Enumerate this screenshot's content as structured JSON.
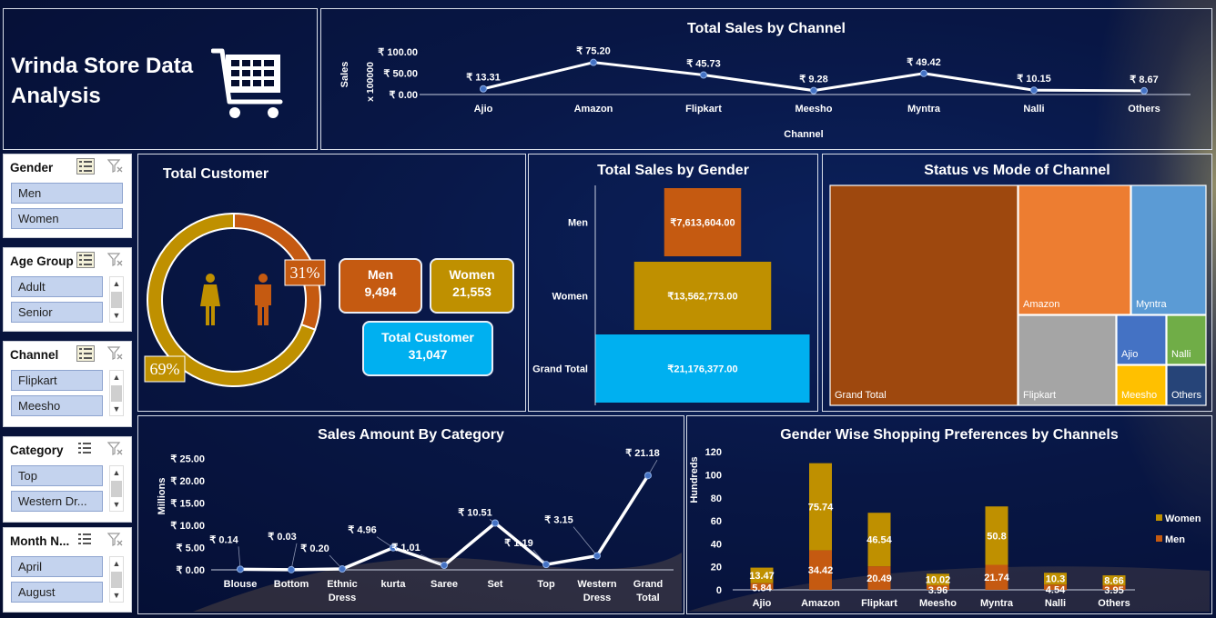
{
  "dashboard": {
    "title": "Vrinda Store Data Analysis",
    "icon": "shopping-cart-icon"
  },
  "colors": {
    "men": "#c55a11",
    "women": "#bf9000",
    "total": "#00b0f0",
    "panel_border": "#d8dde8",
    "background": "#0a1a4a"
  },
  "slicers": [
    {
      "title": "Gender",
      "items": [
        "Men",
        "Women"
      ],
      "multi_select_active": true,
      "scrollable": false
    },
    {
      "title": "Age Group",
      "items": [
        "Adult",
        "Senior"
      ],
      "multi_select_active": true,
      "scrollable": true
    },
    {
      "title": "Channel",
      "items": [
        "Flipkart",
        "Meesho"
      ],
      "multi_select_active": true,
      "scrollable": true
    },
    {
      "title": "Category",
      "items": [
        "Top",
        "Western Dr..."
      ],
      "multi_select_active": false,
      "scrollable": true
    },
    {
      "title": "Month N...",
      "items": [
        "April",
        "August"
      ],
      "multi_select_active": false,
      "scrollable": true
    }
  ],
  "total_customer": {
    "title": "Total Customer",
    "men_pct_label": "31%",
    "women_pct_label": "69%",
    "men_share": 0.306,
    "men_label": "Men",
    "men_value": "9,494",
    "women_label": "Women",
    "women_value": "21,553",
    "total_label": "Total Customer",
    "total_value": "31,047",
    "icons": [
      "female-icon",
      "male-icon"
    ]
  },
  "sales_by_channel": {
    "title": "Total Sales by Channel",
    "chart_data": {
      "type": "line",
      "title": "Total Sales by Channel",
      "xlabel": "Channel",
      "ylabel": "Sales",
      "yunit_label": "x 100000",
      "categories": [
        "Ajio",
        "Amazon",
        "Flipkart",
        "Meesho",
        "Myntra",
        "Nalli",
        "Others"
      ],
      "values": [
        13.31,
        75.2,
        45.73,
        9.28,
        49.42,
        10.15,
        8.67
      ],
      "data_labels": [
        "₹ 13.31",
        "₹ 75.20",
        "₹ 45.73",
        "₹ 9.28",
        "₹ 49.42",
        "₹ 10.15",
        "₹ 8.67"
      ],
      "yticks": [
        "₹ 0.00",
        "₹ 50.00",
        "₹ 100.00"
      ],
      "ylim": [
        0,
        100
      ]
    }
  },
  "sales_by_gender": {
    "title": "Total Sales by Gender",
    "chart_data": {
      "type": "bar",
      "title": "Total Sales by Gender",
      "categories": [
        "Men",
        "Women",
        "Grand Total"
      ],
      "values": [
        7613604,
        13562773,
        21176377
      ],
      "data_labels": [
        "₹7,613,604.00",
        "₹13,562,773.00",
        "₹21,176,377.00"
      ]
    }
  },
  "status_vs_mode": {
    "title": "Status vs Mode of Channel",
    "chart_data": {
      "type": "treemap",
      "title": "Status vs Mode of Channel",
      "labels": [
        "Grand Total",
        "Amazon",
        "Myntra",
        "Flipkart",
        "Ajio",
        "Nalli",
        "Meesho",
        "Others"
      ],
      "colors": [
        "#9e480e",
        "#ed7d31",
        "#5b9bd5",
        "#a5a5a5",
        "#4472c4",
        "#70ad47",
        "#ffc000",
        "#264478"
      ]
    }
  },
  "sales_by_category": {
    "title": "Sales Amount By Category",
    "chart_data": {
      "type": "line",
      "title": "Sales Amount By Category",
      "ylabel": "Millions",
      "categories": [
        "Blouse",
        "Bottom",
        "Ethnic Dress",
        "kurta",
        "Saree",
        "Set",
        "Top",
        "Western Dress",
        "Grand Total"
      ],
      "values": [
        0.14,
        0.03,
        0.2,
        4.96,
        1.01,
        10.51,
        1.19,
        3.15,
        21.18
      ],
      "data_labels": [
        "₹ 0.14",
        "₹ 0.03",
        "₹ 0.20",
        "₹ 4.96",
        "₹ 1.01",
        "₹ 10.51",
        "₹ 1.19",
        "₹ 3.15",
        "₹ 21.18"
      ],
      "yticks": [
        "₹ 0.00",
        "₹ 5.00",
        "₹ 10.00",
        "₹ 15.00",
        "₹ 20.00",
        "₹ 25.00"
      ],
      "ylim": [
        0,
        25
      ]
    }
  },
  "gender_channel": {
    "title": "Gender Wise Shopping Preferences by Channels",
    "chart_data": {
      "type": "bar",
      "stacked": true,
      "title": "Gender Wise Shopping Preferences by Channels",
      "ylabel": "Hundreds",
      "categories": [
        "Ajio",
        "Amazon",
        "Flipkart",
        "Meesho",
        "Myntra",
        "Nalli",
        "Others"
      ],
      "series": [
        {
          "name": "Men",
          "values": [
            5.84,
            34.42,
            20.49,
            3.96,
            21.74,
            4.54,
            3.95
          ],
          "labels": [
            "5.84",
            "34.42",
            "20.49",
            "3.96",
            "21.74",
            "4.54",
            "3.95"
          ]
        },
        {
          "name": "Women",
          "values": [
            13.47,
            75.74,
            46.54,
            10.02,
            50.8,
            10.3,
            8.66
          ],
          "labels": [
            "13.47",
            "75.74",
            "46.54",
            "10.02",
            "50.8",
            "10.3",
            "8.66"
          ]
        }
      ],
      "yticks": [
        "0",
        "20",
        "40",
        "60",
        "80",
        "100",
        "120"
      ],
      "ylim": [
        0,
        120
      ],
      "legend": "right"
    }
  }
}
